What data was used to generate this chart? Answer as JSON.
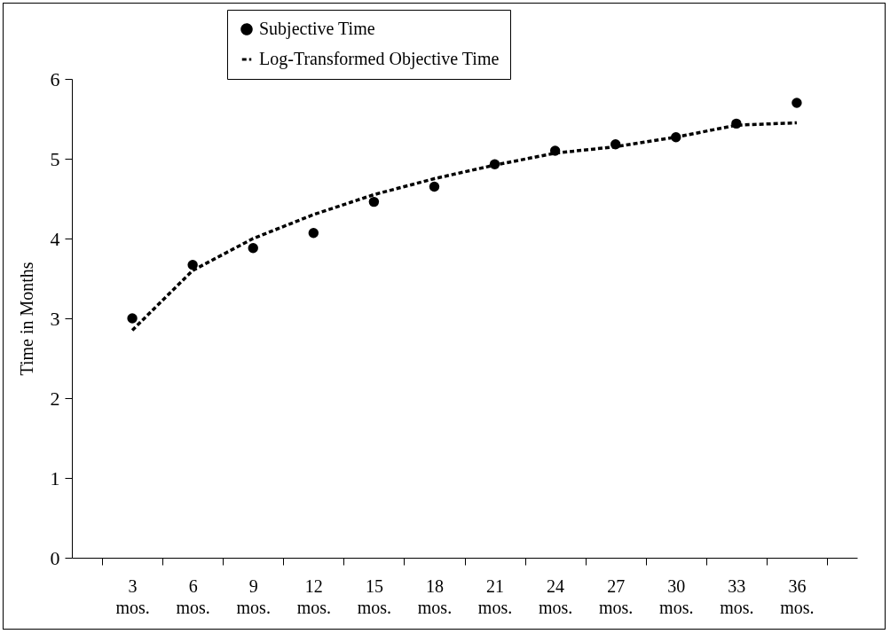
{
  "chart_data": {
    "type": "line",
    "ylabel": "Time in Months",
    "categories": [
      "3 mos.",
      "6 mos.",
      "9 mos.",
      "12 mos.",
      "15 mos.",
      "18 mos.",
      "21 mos.",
      "24 mos.",
      "27 mos.",
      "30 mos.",
      "33 mos.",
      "36 mos."
    ],
    "series": [
      {
        "name": "Subjective Time",
        "type": "scatter",
        "marker": "circle",
        "color": "#000000",
        "values": [
          3.0,
          3.67,
          3.88,
          4.07,
          4.46,
          4.65,
          4.93,
          5.1,
          5.18,
          5.27,
          5.44,
          5.7
        ]
      },
      {
        "name": "Log-Transformed Objective Time",
        "type": "line",
        "line_style": "dashed",
        "marker": "none",
        "color": "#000000",
        "values": [
          2.85,
          3.6,
          4.0,
          4.3,
          4.55,
          4.75,
          4.92,
          5.07,
          5.15,
          5.27,
          5.42,
          5.45
        ]
      }
    ],
    "ylim": [
      0,
      6
    ],
    "yticks": [
      0,
      1,
      2,
      3,
      4,
      5,
      6
    ],
    "grid": false,
    "legend": "top"
  }
}
